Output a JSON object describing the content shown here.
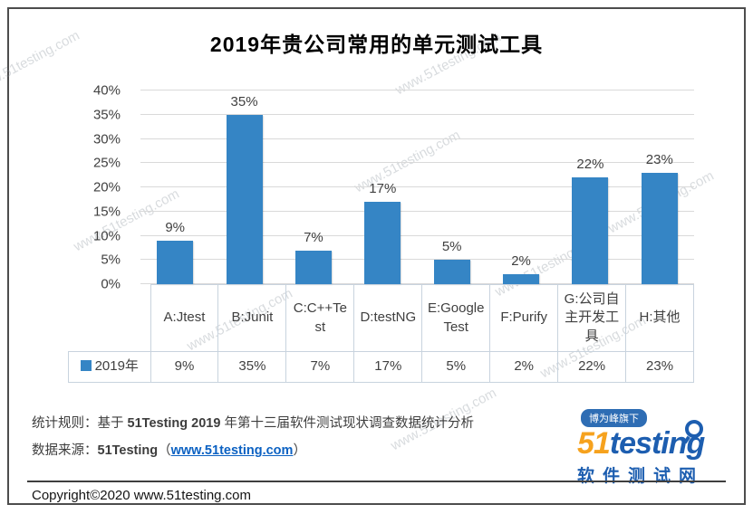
{
  "page": {
    "watermark": "www.51testing.com"
  },
  "chart_data": {
    "type": "bar",
    "title": "2019年贵公司常用的单元测试工具",
    "categories": [
      "A:Jtest",
      "B:Junit",
      "C:C++Test",
      "D:testNG",
      "E:Google Test",
      "F:Purify",
      "G:公司自主开发工具",
      "H:其他"
    ],
    "series": [
      {
        "name": "2019年",
        "values": [
          9,
          35,
          7,
          17,
          5,
          2,
          22,
          23
        ]
      }
    ],
    "value_suffix": "%",
    "ylim": [
      0,
      40
    ],
    "ytick_step": 5,
    "grid": true,
    "legend_position": "table-left",
    "bar_color": "#3585c5",
    "label_color": "#404040",
    "xlabel": "",
    "ylabel": ""
  },
  "footer": {
    "line1": {
      "label": "统计规则：",
      "pre": "基于 ",
      "bold": "51Testing 2019",
      "post": " 年第十三届软件测试现状调查数据统计分析"
    },
    "line2": {
      "label": "数据来源：",
      "brand": "51Testing",
      "paren_open": "（",
      "link": "www.51testing.com",
      "paren_close": "）"
    },
    "copyright": "Copyright©2020 www.51testing.com"
  },
  "logo": {
    "badge": "博为峰旗下",
    "brand_orange": "51",
    "brand_blue": "testing",
    "subtitle": "软件测试网",
    "colors": {
      "orange": "#f6a21e",
      "blue": "#1d5eb0",
      "badge_bg": "#2e6db4"
    }
  }
}
